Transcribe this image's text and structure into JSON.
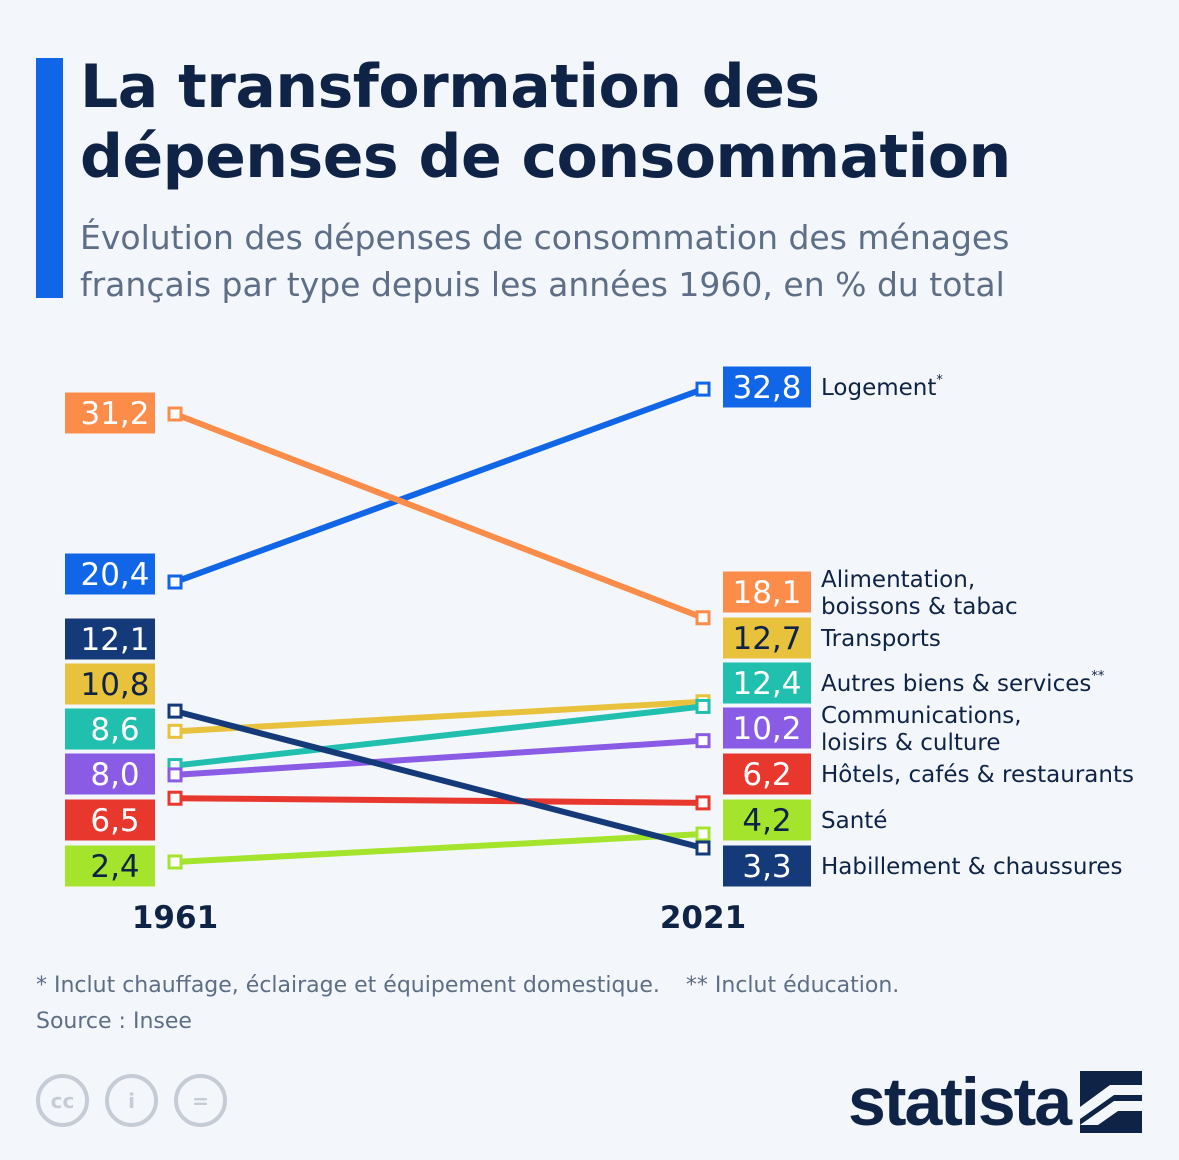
{
  "title": [
    "La transformation des",
    "dépenses de consommation"
  ],
  "subtitle": [
    "Évolution des dépenses de consommation des ménages",
    "français par type depuis les années 1960, en % du total"
  ],
  "chart_data": {
    "type": "slope",
    "x": [
      "1961",
      "2021"
    ],
    "unit": "% du total",
    "series": [
      {
        "name": "Logement",
        "marker": "*",
        "values": [
          20.4,
          32.8
        ],
        "labels": [
          "20,4",
          "32,8"
        ],
        "color": "#1166e8",
        "label_lines": [
          "Logement"
        ]
      },
      {
        "name": "Alimentation, boissons & tabac",
        "values": [
          31.2,
          18.1
        ],
        "labels": [
          "31,2",
          "18,1"
        ],
        "color": "#fb8c4a",
        "label_lines": [
          "Alimentation,",
          "boissons & tabac"
        ]
      },
      {
        "name": "Transports",
        "values": [
          10.8,
          12.7
        ],
        "labels": [
          "10,8",
          "12,7"
        ],
        "color": "#e8c23c",
        "label_lines": [
          "Transports"
        ]
      },
      {
        "name": "Autres biens & services",
        "marker": "**",
        "values": [
          8.6,
          12.4
        ],
        "labels": [
          "8,6",
          "12,4"
        ],
        "color": "#20bfae",
        "label_lines": [
          "Autres biens & services"
        ]
      },
      {
        "name": "Communications, loisirs & culture",
        "values": [
          8.0,
          10.2
        ],
        "labels": [
          "8,0",
          "10,2"
        ],
        "color": "#8a5ce6",
        "label_lines": [
          "Communications,",
          "loisirs & culture"
        ]
      },
      {
        "name": "Hôtels, cafés & restaurants",
        "values": [
          6.5,
          6.2
        ],
        "labels": [
          "6,5",
          "6,2"
        ],
        "color": "#e8382e",
        "label_lines": [
          "Hôtels, cafés & restaurants"
        ]
      },
      {
        "name": "Santé",
        "values": [
          2.4,
          4.2
        ],
        "labels": [
          "2,4",
          "4,2"
        ],
        "color": "#a4e42c",
        "label_lines": [
          "Santé"
        ]
      },
      {
        "name": "Habillement & chaussures",
        "values": [
          12.1,
          3.3
        ],
        "labels": [
          "12,1",
          "3,3"
        ],
        "color": "#153a7a",
        "label_lines": [
          "Habillement & chaussures"
        ]
      }
    ]
  },
  "footnotes": {
    "note1": "* Inclut chauffage, éclairage et équipement domestique.",
    "note2": "** Inclut éducation.",
    "source": "Source : Insee"
  },
  "license_icons": [
    "cc-icon",
    "by-person-icon",
    "nd-equals-icon"
  ],
  "license_glyphs": [
    "cc",
    "i",
    "="
  ],
  "brand": "statista",
  "colors": {
    "accent": "#1166e8",
    "title": "#0f2346",
    "subtitle": "#5d6e86",
    "background": "#f3f6fa"
  }
}
